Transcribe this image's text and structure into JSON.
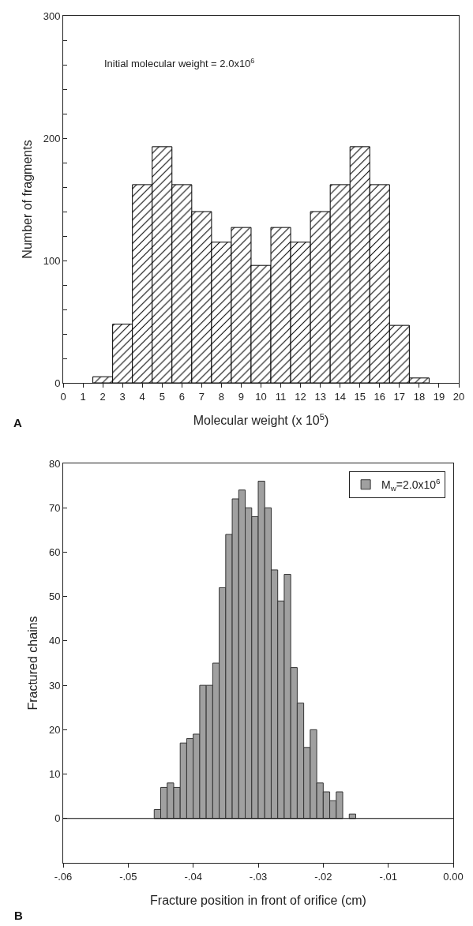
{
  "chart_data": [
    {
      "type": "histogram",
      "xlabel": "Molecular weight (x 10$^{5}$)",
      "ylabel": "Number of fragments",
      "annotations": [
        "Initial molecular weight = 2.0x10$^{6}$",
        "A"
      ],
      "bins": [
        1.5,
        2.5,
        3.5,
        4.5,
        5.5,
        6.5,
        7.5,
        8.5,
        9.5,
        10.5,
        11.5,
        12.5,
        13.5,
        14.5,
        15.5,
        16.5,
        17.5,
        18.5
      ],
      "values": [
        5,
        48,
        162,
        193,
        162,
        140,
        115,
        127,
        96,
        127,
        115,
        140,
        162,
        193,
        162,
        47,
        4
      ],
      "color": "#000000",
      "xlim": [
        0,
        20
      ],
      "xticks": [
        0,
        1,
        2,
        3,
        4,
        5,
        6,
        7,
        8,
        9,
        10,
        11,
        12,
        13,
        14,
        15,
        16,
        17,
        18,
        19,
        20
      ],
      "ylim": [
        0,
        300
      ],
      "yticks": [
        0,
        {
          "value": 20,
          "label": null
        },
        {
          "value": 40,
          "label": null
        },
        {
          "value": 60,
          "label": null
        },
        {
          "value": 80,
          "label": null
        },
        100,
        {
          "value": 120,
          "label": null
        },
        {
          "value": 140,
          "label": null
        },
        {
          "value": 160,
          "label": null
        },
        {
          "value": 180,
          "label": null
        },
        200,
        {
          "value": 220,
          "label": null
        },
        {
          "value": 240,
          "label": null
        },
        {
          "value": 260,
          "label": null
        },
        {
          "value": 280,
          "label": null
        },
        300
      ],
      "grid": false,
      "legend": false
    },
    {
      "type": "histogram",
      "xlabel": "Fracture position in front of orifice (cm)",
      "ylabel": "Fractured chains",
      "annotations": [
        "B"
      ],
      "series": [
        {
          "name": "M$_{w}$=2.0x10$^{6}$",
          "color": "#a0a0a0",
          "values": [
            2,
            7,
            8,
            7,
            17,
            18,
            19,
            30,
            30,
            35,
            52,
            64,
            72,
            74,
            70,
            68,
            76,
            70,
            56,
            49,
            55,
            34,
            26,
            16,
            20,
            8,
            6,
            4,
            6,
            null,
            1
          ]
        }
      ],
      "bins": [
        -0.046,
        -0.045,
        -0.044,
        -0.043,
        -0.042,
        -0.041,
        -0.04,
        -0.039,
        -0.038,
        -0.037,
        -0.036,
        -0.035,
        -0.034,
        -0.033,
        -0.032,
        -0.031,
        -0.03,
        -0.029,
        -0.028,
        -0.027,
        -0.026,
        -0.025,
        -0.024,
        -0.023,
        -0.022,
        -0.021,
        -0.02,
        -0.019,
        -0.018,
        -0.017,
        -0.016,
        -0.015
      ],
      "xlim": [
        -0.06,
        0
      ],
      "xticks": [
        {
          "value": -0.06,
          "label": "-.06"
        },
        {
          "value": -0.05,
          "label": "-.05"
        },
        {
          "value": -0.04,
          "label": "-.04"
        },
        {
          "value": -0.03,
          "label": "-.03"
        },
        {
          "value": -0.02,
          "label": "-.02"
        },
        {
          "value": -0.01,
          "label": "-.01"
        },
        {
          "value": 0,
          "label": "0.00"
        }
      ],
      "ylim": [
        -10,
        80
      ],
      "yticks": [
        0,
        10,
        20,
        30,
        40,
        50,
        60,
        70,
        80
      ],
      "ref_lines": [
        {
          "axis": "y",
          "value": 0,
          "label": null,
          "color": "#000000"
        }
      ],
      "grid": false,
      "legend": "top right"
    }
  ]
}
